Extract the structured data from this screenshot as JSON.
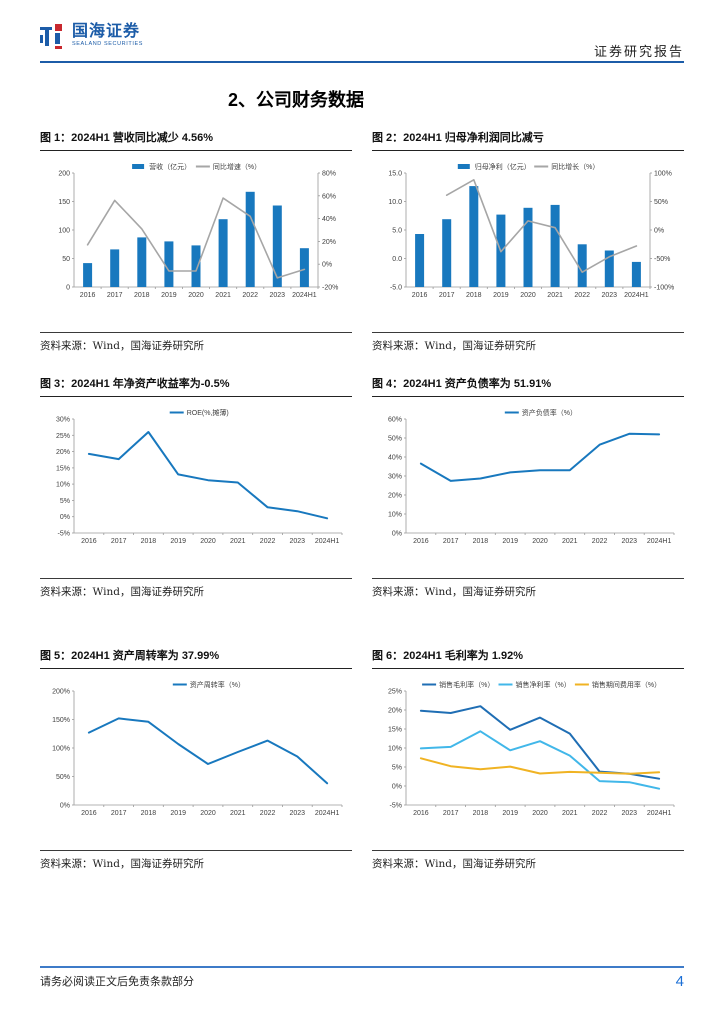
{
  "header": {
    "brand": "国海证券",
    "brand_sub": "SEALAND SECURITIES",
    "report_type": "证券研究报告"
  },
  "section_title": "2、公司财务数据",
  "source_note": "资料来源：Wind，国海证券研究所",
  "footer": {
    "disclaimer": "请务必阅读正文后免责条款部分",
    "page_number": "4"
  },
  "colors": {
    "brand_blue": "#1c5ca8",
    "bar_blue": "#1878be",
    "line_gray": "#a6a6a6",
    "line_blue": "#1878be",
    "dark_blue": "#1f6eb4",
    "light_blue": "#41b7e9",
    "yellow": "#f0b323",
    "footer_rule_blue": "#3e7bc8",
    "page_number_blue": "#1b6fd6"
  },
  "figures": [
    {
      "title": "图 1：2024H1 营收同比减少 4.56%"
    },
    {
      "title": "图 2：2024H1 归母净利润同比减亏"
    },
    {
      "title": "图 3：2024H1 年净资产收益率为-0.5%"
    },
    {
      "title": "图 4：2024H1 资产负债率为 51.91%"
    },
    {
      "title": "图 5：2024H1 资产周转率为 37.99%"
    },
    {
      "title": "图 6：2024H1 毛利率为 1.92%"
    }
  ],
  "chart_data": [
    {
      "type": "bar",
      "title": "图 1：2024H1 营收同比减少 4.56%",
      "categories": [
        "2016",
        "2017",
        "2018",
        "2019",
        "2020",
        "2021",
        "2022",
        "2023",
        "2024H1"
      ],
      "bar_series": {
        "name": "营收（亿元）",
        "color": "#1878be",
        "axis": "left",
        "values": [
          42,
          66,
          87,
          80,
          73,
          119,
          167,
          143,
          68
        ]
      },
      "line_series": [
        {
          "name": "同比增速（%）",
          "color": "#a6a6a6",
          "axis": "right",
          "width": 1.6,
          "values": [
            17,
            56,
            31,
            -6,
            -6,
            58,
            42,
            -12,
            -4.56
          ]
        }
      ],
      "left_axis": {
        "min": 0,
        "max": 200,
        "step": 50,
        "format": "int"
      },
      "right_axis": {
        "min": -20,
        "max": 80,
        "step": 20,
        "format": "pct"
      },
      "legend_position": "top-center",
      "grid": false
    },
    {
      "type": "bar",
      "title": "图 2：2024H1 归母净利润同比减亏",
      "categories": [
        "2016",
        "2017",
        "2018",
        "2019",
        "2020",
        "2021",
        "2022",
        "2023",
        "2024H1"
      ],
      "bar_series": {
        "name": "归母净利（亿元）",
        "color": "#1878be",
        "axis": "left",
        "values": [
          4.3,
          6.9,
          12.7,
          7.7,
          8.9,
          9.4,
          2.5,
          1.4,
          -0.6
        ]
      },
      "line_series": [
        {
          "name": "同比增长（%）",
          "color": "#a6a6a6",
          "axis": "right",
          "width": 1.6,
          "values": [
            null,
            61,
            88,
            -38,
            16,
            4,
            -74,
            -47,
            -28
          ]
        }
      ],
      "left_axis": {
        "min": -5,
        "max": 15,
        "step": 5,
        "format": "dec1"
      },
      "right_axis": {
        "min": -100,
        "max": 100,
        "step": 50,
        "format": "pct"
      },
      "legend_position": "top-center",
      "grid": false
    },
    {
      "type": "line",
      "title": "图 3：2024H1 年净资产收益率为-0.5%",
      "categories": [
        "2016",
        "2017",
        "2018",
        "2019",
        "2020",
        "2021",
        "2022",
        "2023",
        "2024H1"
      ],
      "line_series": [
        {
          "name": "ROE(%,摊薄)",
          "color": "#1878be",
          "axis": "left",
          "width": 2,
          "values": [
            19.3,
            17.7,
            26.0,
            13.0,
            11.2,
            10.5,
            2.9,
            1.7,
            -0.5
          ]
        }
      ],
      "left_axis": {
        "min": -5,
        "max": 30,
        "step": 5,
        "format": "pct"
      },
      "legend_position": "top-center",
      "grid": false
    },
    {
      "type": "line",
      "title": "图 4：2024H1 资产负债率为 51.91%",
      "categories": [
        "2016",
        "2017",
        "2018",
        "2019",
        "2020",
        "2021",
        "2022",
        "2023",
        "2024H1"
      ],
      "line_series": [
        {
          "name": "资产负债率（%）",
          "color": "#1878be",
          "axis": "left",
          "width": 2,
          "values": [
            36.5,
            27.4,
            28.7,
            31.9,
            33.0,
            33.0,
            46.5,
            52.2,
            51.91
          ]
        }
      ],
      "left_axis": {
        "min": 0,
        "max": 60,
        "step": 10,
        "format": "pct"
      },
      "legend_position": "top-center",
      "grid": false
    },
    {
      "type": "line",
      "title": "图 5：2024H1 资产周转率为 37.99%",
      "categories": [
        "2016",
        "2017",
        "2018",
        "2019",
        "2020",
        "2021",
        "2022",
        "2023",
        "2024H1"
      ],
      "line_series": [
        {
          "name": "资产周转率（%）",
          "color": "#1878be",
          "axis": "left",
          "width": 2,
          "values": [
            127,
            152,
            146,
            107,
            72,
            93,
            113,
            85,
            37.99
          ]
        }
      ],
      "left_axis": {
        "min": 0,
        "max": 200,
        "step": 50,
        "format": "pct"
      },
      "legend_position": "top-center",
      "grid": false
    },
    {
      "type": "line",
      "title": "图 6：2024H1 毛利率为 1.92%",
      "categories": [
        "2016",
        "2017",
        "2018",
        "2019",
        "2020",
        "2021",
        "2022",
        "2023",
        "2024H1"
      ],
      "line_series": [
        {
          "name": "销售毛利率（%）",
          "color": "#1f6eb4",
          "axis": "left",
          "width": 2,
          "values": [
            19.8,
            19.2,
            21.0,
            14.8,
            18.0,
            13.8,
            3.8,
            3.2,
            1.92
          ]
        },
        {
          "name": "销售净利率（%）",
          "color": "#41b7e9",
          "axis": "left",
          "width": 2,
          "values": [
            9.9,
            10.3,
            14.4,
            9.4,
            11.8,
            8.0,
            1.3,
            1.0,
            -0.7
          ]
        },
        {
          "name": "销售期间费用率（%）",
          "color": "#f0b323",
          "axis": "left",
          "width": 2,
          "values": [
            7.3,
            5.2,
            4.4,
            5.1,
            3.3,
            3.7,
            3.5,
            3.2,
            3.6
          ]
        }
      ],
      "left_axis": {
        "min": -5,
        "max": 25,
        "step": 5,
        "format": "pct"
      },
      "legend_position": "top-center",
      "grid": false
    }
  ]
}
